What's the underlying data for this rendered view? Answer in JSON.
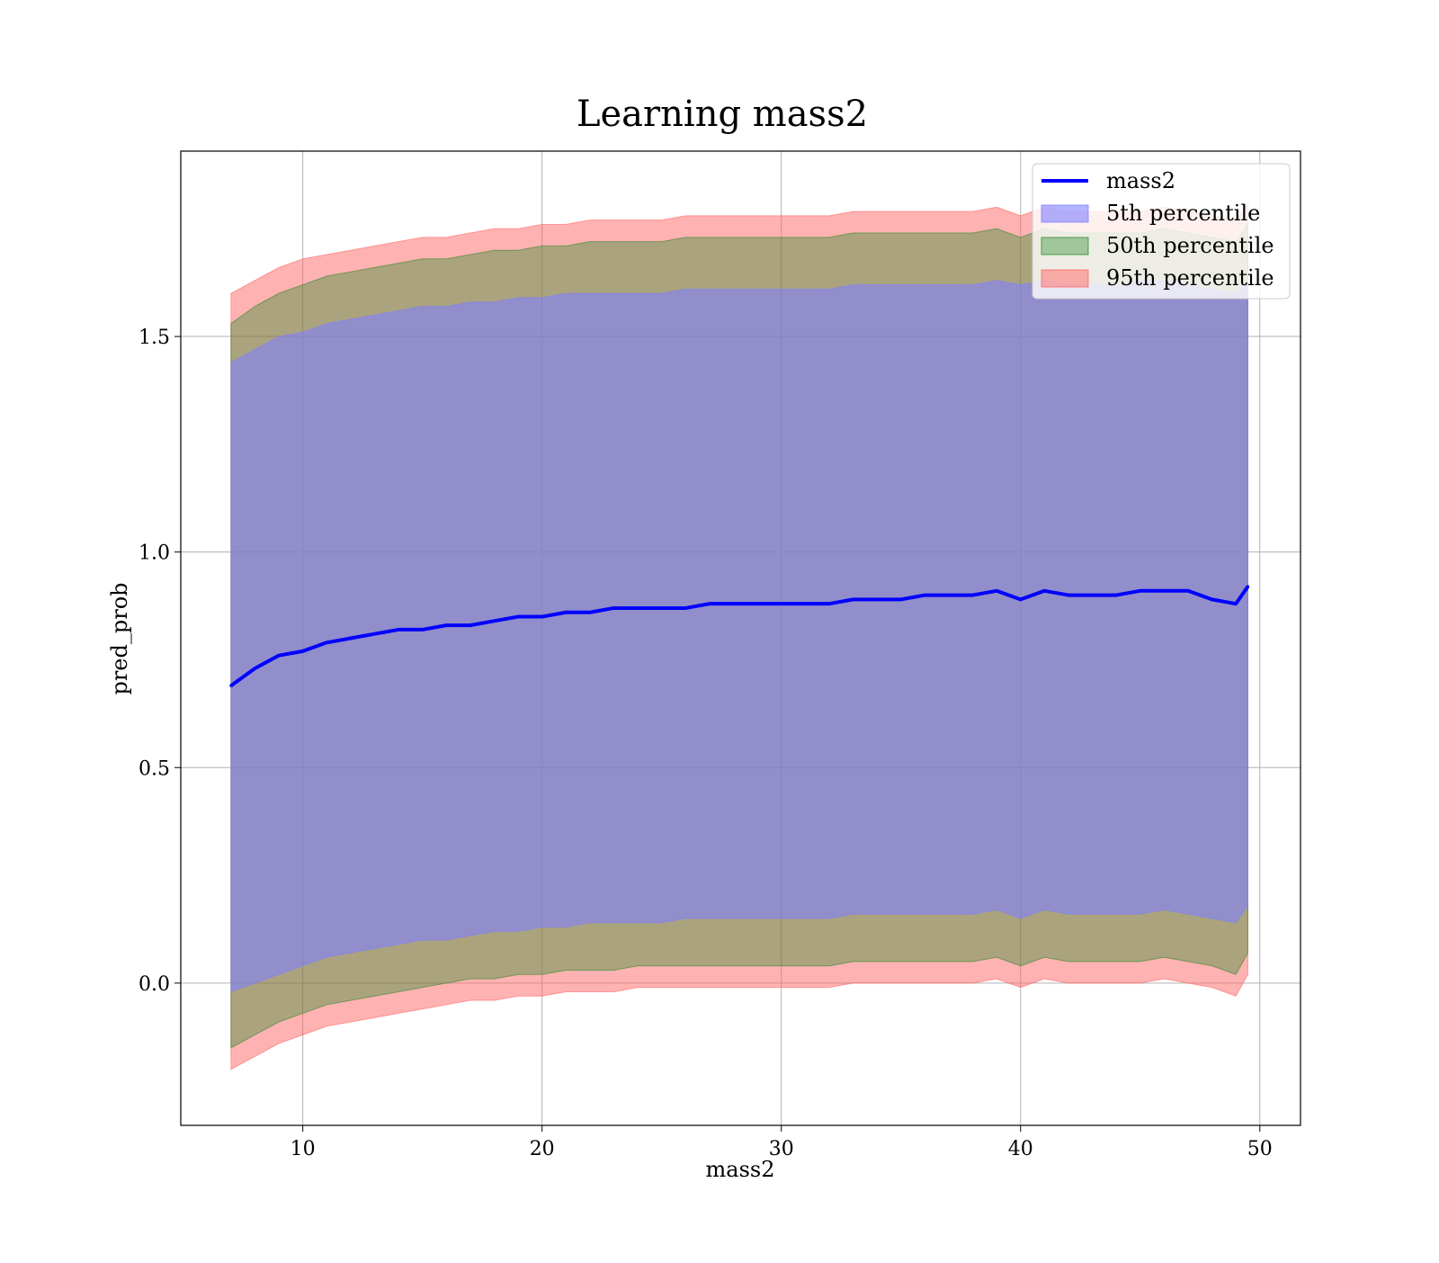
{
  "chart_data": {
    "type": "area",
    "title": "Learning mass2",
    "xlabel": "mass2",
    "ylabel": "pred_prob",
    "xlim": [
      4.9,
      51.7
    ],
    "ylim": [
      -0.33,
      1.93
    ],
    "grid": true,
    "legend_placement": "top-right",
    "x_ticks": [
      10,
      20,
      30,
      40,
      50
    ],
    "y_ticks": [
      0.0,
      0.5,
      1.0,
      1.5
    ],
    "x_tick_labels": [
      "10",
      "20",
      "30",
      "40",
      "50"
    ],
    "y_tick_labels": [
      "0.0",
      "0.5",
      "1.0",
      "1.5"
    ],
    "x": [
      7.0,
      8.0,
      9.0,
      10.0,
      11.0,
      12.0,
      13.0,
      14.0,
      15.0,
      16.0,
      17.0,
      18.0,
      19.0,
      20.0,
      21.0,
      22.0,
      23.0,
      24.0,
      25.0,
      26.0,
      27.0,
      28.0,
      29.0,
      30.0,
      31.0,
      32.0,
      33.0,
      34.0,
      35.0,
      36.0,
      37.0,
      38.0,
      39.0,
      40.0,
      41.0,
      42.0,
      43.0,
      44.0,
      45.0,
      46.0,
      47.0,
      48.0,
      49.0,
      49.5
    ],
    "series": [
      {
        "name": "mass2",
        "kind": "line",
        "color": "#0000ff",
        "values": [
          0.69,
          0.73,
          0.76,
          0.77,
          0.79,
          0.8,
          0.81,
          0.82,
          0.82,
          0.83,
          0.83,
          0.84,
          0.85,
          0.85,
          0.86,
          0.86,
          0.87,
          0.87,
          0.87,
          0.87,
          0.88,
          0.88,
          0.88,
          0.88,
          0.88,
          0.88,
          0.89,
          0.89,
          0.89,
          0.9,
          0.9,
          0.9,
          0.91,
          0.89,
          0.91,
          0.9,
          0.9,
          0.9,
          0.91,
          0.91,
          0.91,
          0.89,
          0.88,
          0.92
        ]
      },
      {
        "name": "5th percentile",
        "kind": "band",
        "color": "#8080ff",
        "opacity": 0.6,
        "lower": [
          -0.02,
          0.0,
          0.02,
          0.04,
          0.06,
          0.07,
          0.08,
          0.09,
          0.1,
          0.1,
          0.11,
          0.12,
          0.12,
          0.13,
          0.13,
          0.14,
          0.14,
          0.14,
          0.14,
          0.15,
          0.15,
          0.15,
          0.15,
          0.15,
          0.15,
          0.15,
          0.16,
          0.16,
          0.16,
          0.16,
          0.16,
          0.16,
          0.17,
          0.15,
          0.17,
          0.16,
          0.16,
          0.16,
          0.16,
          0.17,
          0.16,
          0.15,
          0.14,
          0.18
        ],
        "upper": [
          1.44,
          1.47,
          1.5,
          1.51,
          1.53,
          1.54,
          1.55,
          1.56,
          1.57,
          1.57,
          1.58,
          1.58,
          1.59,
          1.59,
          1.6,
          1.6,
          1.6,
          1.6,
          1.6,
          1.61,
          1.61,
          1.61,
          1.61,
          1.61,
          1.61,
          1.61,
          1.62,
          1.62,
          1.62,
          1.62,
          1.62,
          1.62,
          1.63,
          1.62,
          1.63,
          1.62,
          1.62,
          1.62,
          1.63,
          1.63,
          1.62,
          1.61,
          1.6,
          1.63
        ]
      },
      {
        "name": "50th percentile",
        "kind": "band",
        "color": "#2e8b2e",
        "opacity": 0.4,
        "lower": [
          -0.15,
          -0.12,
          -0.09,
          -0.07,
          -0.05,
          -0.04,
          -0.03,
          -0.02,
          -0.01,
          0.0,
          0.01,
          0.01,
          0.02,
          0.02,
          0.03,
          0.03,
          0.03,
          0.04,
          0.04,
          0.04,
          0.04,
          0.04,
          0.04,
          0.04,
          0.04,
          0.04,
          0.05,
          0.05,
          0.05,
          0.05,
          0.05,
          0.05,
          0.06,
          0.04,
          0.06,
          0.05,
          0.05,
          0.05,
          0.05,
          0.06,
          0.05,
          0.04,
          0.02,
          0.07
        ],
        "upper": [
          1.53,
          1.57,
          1.6,
          1.62,
          1.64,
          1.65,
          1.66,
          1.67,
          1.68,
          1.68,
          1.69,
          1.7,
          1.7,
          1.71,
          1.71,
          1.72,
          1.72,
          1.72,
          1.72,
          1.73,
          1.73,
          1.73,
          1.73,
          1.73,
          1.73,
          1.73,
          1.74,
          1.74,
          1.74,
          1.74,
          1.74,
          1.74,
          1.75,
          1.73,
          1.75,
          1.74,
          1.74,
          1.74,
          1.74,
          1.75,
          1.74,
          1.73,
          1.72,
          1.76
        ]
      },
      {
        "name": "95th percentile",
        "kind": "band",
        "color": "#ff6666",
        "opacity": 0.5,
        "lower": [
          -0.2,
          -0.17,
          -0.14,
          -0.12,
          -0.1,
          -0.09,
          -0.08,
          -0.07,
          -0.06,
          -0.05,
          -0.04,
          -0.04,
          -0.03,
          -0.03,
          -0.02,
          -0.02,
          -0.02,
          -0.01,
          -0.01,
          -0.01,
          -0.01,
          -0.01,
          -0.01,
          -0.01,
          -0.01,
          -0.01,
          0.0,
          0.0,
          0.0,
          0.0,
          0.0,
          0.0,
          0.01,
          -0.01,
          0.01,
          0.0,
          0.0,
          0.0,
          0.0,
          0.01,
          0.0,
          -0.01,
          -0.03,
          0.02
        ],
        "upper": [
          1.6,
          1.63,
          1.66,
          1.68,
          1.69,
          1.7,
          1.71,
          1.72,
          1.73,
          1.73,
          1.74,
          1.75,
          1.75,
          1.76,
          1.76,
          1.77,
          1.77,
          1.77,
          1.77,
          1.78,
          1.78,
          1.78,
          1.78,
          1.78,
          1.78,
          1.78,
          1.79,
          1.79,
          1.79,
          1.79,
          1.79,
          1.79,
          1.8,
          1.78,
          1.8,
          1.79,
          1.79,
          1.79,
          1.79,
          1.8,
          1.79,
          1.78,
          1.77,
          1.81
        ]
      }
    ]
  }
}
